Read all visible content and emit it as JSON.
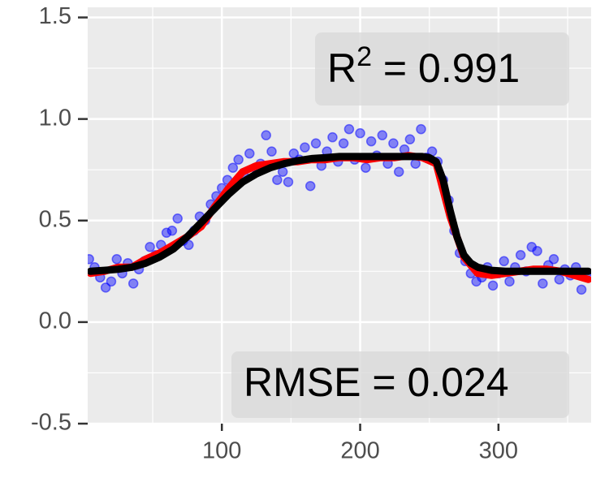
{
  "chart_data": {
    "type": "scatter",
    "xlim": [
      3,
      367
    ],
    "ylim": [
      -0.5,
      1.55
    ],
    "xticks": [
      100,
      200,
      300
    ],
    "yticks": [
      -0.5,
      {
        "value": 0,
        "label": "0.0"
      },
      0.5,
      {
        "value": 1,
        "label": "1.0"
      },
      1.5
    ],
    "x_minor_grid": [
      50,
      150,
      250,
      350
    ],
    "y_minor_grid": [
      -0.25,
      0.25,
      0.75,
      1.25
    ],
    "grid": true,
    "annotations": [
      {
        "base": "R",
        "sup": "2",
        "rest": " = 0.991"
      },
      {
        "text": "RMSE = 0.024"
      }
    ],
    "series": [
      {
        "type": "scatter",
        "color": "#0000ff",
        "x": [
          4,
          8,
          12,
          16,
          20,
          24,
          28,
          32,
          36,
          40,
          44,
          48,
          52,
          56,
          60,
          64,
          68,
          72,
          76,
          80,
          84,
          88,
          92,
          96,
          100,
          104,
          108,
          112,
          116,
          120,
          124,
          128,
          132,
          136,
          140,
          144,
          148,
          152,
          156,
          160,
          164,
          168,
          172,
          176,
          180,
          184,
          188,
          192,
          196,
          200,
          204,
          208,
          212,
          216,
          220,
          224,
          228,
          232,
          236,
          240,
          244,
          248,
          252,
          256,
          260,
          264,
          268,
          272,
          276,
          280,
          284,
          288,
          292,
          296,
          300,
          304,
          308,
          312,
          316,
          320,
          324,
          328,
          332,
          336,
          340,
          344,
          348,
          352,
          356,
          360,
          364
        ],
        "values": [
          0.31,
          0.27,
          0.22,
          0.17,
          0.2,
          0.31,
          0.24,
          0.29,
          0.19,
          0.26,
          0.3,
          0.37,
          0.33,
          0.38,
          0.44,
          0.45,
          0.51,
          0.4,
          0.38,
          0.45,
          0.52,
          0.5,
          0.58,
          0.62,
          0.66,
          0.7,
          0.76,
          0.8,
          0.72,
          0.83,
          0.76,
          0.78,
          0.92,
          0.84,
          0.7,
          0.74,
          0.69,
          0.83,
          0.8,
          0.86,
          0.67,
          0.88,
          0.77,
          0.84,
          0.91,
          0.79,
          0.88,
          0.95,
          0.8,
          0.93,
          0.76,
          0.89,
          0.82,
          0.92,
          0.78,
          0.88,
          0.74,
          0.85,
          0.9,
          0.78,
          0.95,
          0.81,
          0.84,
          0.79,
          0.7,
          0.6,
          0.45,
          0.34,
          0.3,
          0.24,
          0.2,
          0.22,
          0.27,
          0.18,
          0.24,
          0.3,
          0.2,
          0.27,
          0.33,
          0.25,
          0.37,
          0.35,
          0.19,
          0.28,
          0.31,
          0.21,
          0.26,
          0.23,
          0.27,
          0.16,
          0.24
        ]
      },
      {
        "type": "line",
        "color": "#ff0000",
        "x": [
          5,
          15,
          25,
          35,
          45,
          55,
          65,
          75,
          85,
          95,
          105,
          115,
          125,
          135,
          145,
          155,
          165,
          175,
          185,
          195,
          205,
          215,
          225,
          235,
          245,
          255,
          265,
          275,
          285,
          295,
          305,
          315,
          325,
          335,
          345,
          355,
          365
        ],
        "values": [
          0.24,
          0.25,
          0.27,
          0.27,
          0.31,
          0.34,
          0.38,
          0.42,
          0.47,
          0.57,
          0.66,
          0.74,
          0.77,
          0.78,
          0.79,
          0.79,
          0.8,
          0.8,
          0.81,
          0.81,
          0.8,
          0.81,
          0.81,
          0.82,
          0.81,
          0.78,
          0.52,
          0.32,
          0.24,
          0.23,
          0.24,
          0.25,
          0.26,
          0.26,
          0.25,
          0.23,
          0.21
        ]
      },
      {
        "type": "line",
        "color": "#000000",
        "x": [
          5,
          15,
          25,
          35,
          45,
          55,
          65,
          75,
          85,
          95,
          105,
          115,
          125,
          135,
          145,
          155,
          165,
          175,
          185,
          195,
          205,
          215,
          225,
          235,
          245,
          250,
          255,
          260,
          265,
          270,
          275,
          280,
          285,
          295,
          305,
          315,
          325,
          335,
          345,
          355,
          365
        ],
        "values": [
          0.25,
          0.255,
          0.26,
          0.27,
          0.29,
          0.32,
          0.36,
          0.42,
          0.49,
          0.56,
          0.63,
          0.69,
          0.73,
          0.76,
          0.78,
          0.795,
          0.805,
          0.81,
          0.815,
          0.815,
          0.815,
          0.815,
          0.815,
          0.815,
          0.815,
          0.81,
          0.79,
          0.7,
          0.55,
          0.42,
          0.33,
          0.29,
          0.27,
          0.255,
          0.25,
          0.25,
          0.25,
          0.25,
          0.25,
          0.25,
          0.25
        ]
      }
    ]
  }
}
